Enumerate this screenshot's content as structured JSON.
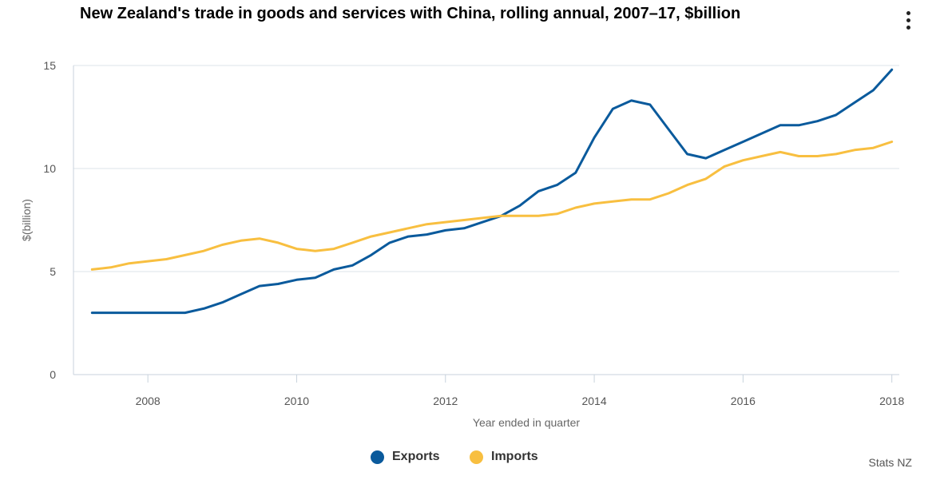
{
  "title": "New Zealand's trade in goods and services with China, rolling annual, 2007–17, $billion",
  "credit": "Stats NZ",
  "menu_icon": "kebab-menu-icon",
  "colors": {
    "exports": "#0a5a9c",
    "imports": "#f8bf40",
    "grid": "#dde3e8",
    "axis": "#c8d2dc"
  },
  "chart_data": {
    "type": "line",
    "title": "New Zealand's trade in goods and services with China, rolling annual, 2007–17, $billion",
    "xlabel": "Year ended in quarter",
    "ylabel": "$(billion)",
    "xlim": [
      2007.0,
      2018.1
    ],
    "ylim": [
      0,
      15
    ],
    "x_ticks": [
      2008,
      2010,
      2012,
      2014,
      2016,
      2018
    ],
    "y_ticks": [
      0,
      5,
      10,
      15
    ],
    "grid": "horizontal",
    "legend": "bottom-center",
    "x": [
      2007.25,
      2007.5,
      2007.75,
      2008.0,
      2008.25,
      2008.5,
      2008.75,
      2009.0,
      2009.25,
      2009.5,
      2009.75,
      2010.0,
      2010.25,
      2010.5,
      2010.75,
      2011.0,
      2011.25,
      2011.5,
      2011.75,
      2012.0,
      2012.25,
      2012.5,
      2012.75,
      2013.0,
      2013.25,
      2013.5,
      2013.75,
      2014.0,
      2014.25,
      2014.5,
      2014.75,
      2015.0,
      2015.25,
      2015.5,
      2015.75,
      2016.0,
      2016.25,
      2016.5,
      2016.75,
      2017.0,
      2017.25,
      2017.5,
      2017.75,
      2018.0
    ],
    "series": [
      {
        "name": "Exports",
        "values": [
          3.0,
          3.0,
          3.0,
          3.0,
          3.0,
          3.0,
          3.2,
          3.5,
          3.9,
          4.3,
          4.4,
          4.6,
          4.7,
          5.1,
          5.3,
          5.8,
          6.4,
          6.7,
          6.8,
          7.0,
          7.1,
          7.4,
          7.7,
          8.2,
          8.9,
          9.2,
          9.8,
          11.5,
          12.9,
          13.3,
          13.1,
          11.9,
          10.7,
          10.5,
          10.9,
          11.3,
          11.7,
          12.1,
          12.1,
          12.3,
          12.6,
          13.2,
          13.8,
          14.8
        ]
      },
      {
        "name": "Imports",
        "values": [
          5.1,
          5.2,
          5.4,
          5.5,
          5.6,
          5.8,
          6.0,
          6.3,
          6.5,
          6.6,
          6.4,
          6.1,
          6.0,
          6.1,
          6.4,
          6.7,
          6.9,
          7.1,
          7.3,
          7.4,
          7.5,
          7.6,
          7.7,
          7.7,
          7.7,
          7.8,
          8.1,
          8.3,
          8.4,
          8.5,
          8.5,
          8.8,
          9.2,
          9.5,
          10.1,
          10.4,
          10.6,
          10.8,
          10.6,
          10.6,
          10.7,
          10.9,
          11.0,
          11.3
        ]
      }
    ]
  }
}
